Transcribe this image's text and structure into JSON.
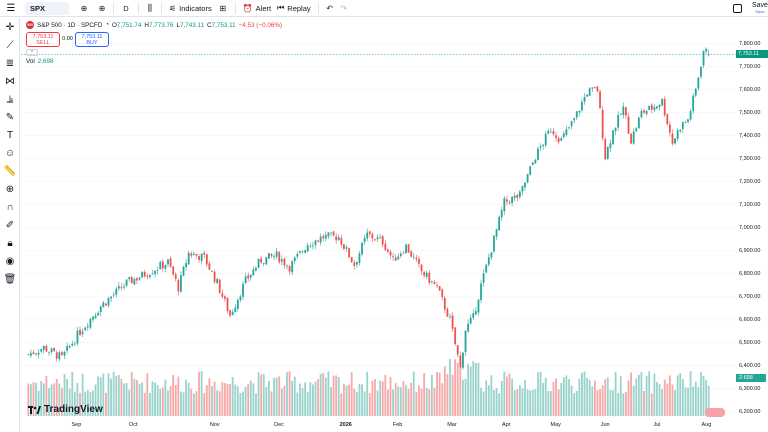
{
  "toolbar": {
    "symbol": "SPX",
    "interval": "D",
    "indicators_label": "Indicators",
    "alert_label": "Alert",
    "replay_label": "Replay",
    "save_label": "Save",
    "save_sub": "Save"
  },
  "legend": {
    "logo_text": "500",
    "title": "S&P 500 · 1D · SPCFD",
    "o_key": "O",
    "o_val": "7,751.74",
    "h_key": "H",
    "h_val": "7,773.76",
    "l_key": "L",
    "l_val": "7,743.11",
    "c_key": "C",
    "c_val": "7,753.11",
    "change": "−4.53 (−0.06%)",
    "sell_price": "7,753.11",
    "sell_label": "SELL",
    "spread": "0.00",
    "buy_price": "7,753.11",
    "buy_label": "BUY",
    "vol_label": "Vol",
    "vol_value": "2.698"
  },
  "price_axis": {
    "labels": [
      "7,800.00",
      "7,700.00",
      "7,600.00",
      "7,500.00",
      "7,400.00",
      "7,300.00",
      "7,200.00",
      "7,100.00",
      "7,000.00",
      "6,900.00",
      "6,800.00",
      "6,700.00",
      "6,600.00",
      "6,500.00",
      "6,400.00",
      "6,300.00",
      "6,200.00"
    ],
    "last_price": "7,753.11",
    "volume_last": "2.698"
  },
  "time_axis": {
    "labels": [
      "Sep",
      "Oct",
      "Nov",
      "Dec",
      "2026",
      "Feb",
      "Mar",
      "Apr",
      "May",
      "Jun",
      "Jul",
      "Aug"
    ]
  },
  "watermark": "TradingView",
  "colors": {
    "up": "#26a69a",
    "down": "#ef5350",
    "vol_up": "#9ad3cb",
    "vol_down": "#f7a9a8",
    "last": "#089981"
  },
  "chart_data": {
    "type": "candlestick",
    "title": "S&P 500 · 1D · SPCFD",
    "ylim": [
      6200,
      7850
    ],
    "price_ticks": [
      6200,
      6300,
      6400,
      6500,
      6600,
      6700,
      6800,
      6900,
      7000,
      7100,
      7200,
      7300,
      7400,
      7500,
      7600,
      7700,
      7800
    ],
    "waypoints": [
      [
        0,
        6450
      ],
      [
        6,
        6480
      ],
      [
        13,
        6435
      ],
      [
        20,
        6550
      ],
      [
        28,
        6660
      ],
      [
        38,
        6760
      ],
      [
        47,
        6810
      ],
      [
        54,
        6850
      ],
      [
        58,
        6740
      ],
      [
        62,
        6890
      ],
      [
        68,
        6870
      ],
      [
        73,
        6760
      ],
      [
        78,
        6620
      ],
      [
        84,
        6770
      ],
      [
        90,
        6860
      ],
      [
        96,
        6880
      ],
      [
        101,
        6830
      ],
      [
        108,
        6930
      ],
      [
        114,
        6960
      ],
      [
        120,
        6960
      ],
      [
        126,
        6840
      ],
      [
        131,
        6970
      ],
      [
        137,
        6940
      ],
      [
        141,
        6860
      ],
      [
        146,
        6920
      ],
      [
        152,
        6810
      ],
      [
        158,
        6740
      ],
      [
        163,
        6600
      ],
      [
        167,
        6390
      ],
      [
        169,
        6560
      ],
      [
        172,
        6610
      ],
      [
        175,
        6750
      ],
      [
        179,
        6910
      ],
      [
        184,
        7110
      ],
      [
        190,
        7140
      ],
      [
        196,
        7310
      ],
      [
        202,
        7430
      ],
      [
        206,
        7380
      ],
      [
        211,
        7470
      ],
      [
        216,
        7590
      ],
      [
        220,
        7600
      ],
      [
        223,
        7310
      ],
      [
        226,
        7420
      ],
      [
        230,
        7520
      ],
      [
        233,
        7380
      ],
      [
        237,
        7500
      ],
      [
        241,
        7520
      ],
      [
        245,
        7550
      ],
      [
        249,
        7370
      ],
      [
        252,
        7440
      ],
      [
        255,
        7470
      ],
      [
        258,
        7600
      ],
      [
        261,
        7770
      ],
      [
        263,
        7753
      ]
    ]
  }
}
